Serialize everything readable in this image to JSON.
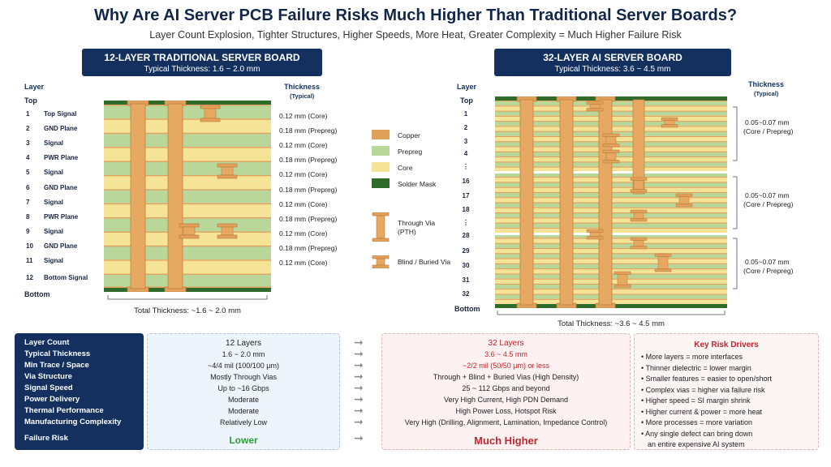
{
  "title": "Why Are AI Server PCB Failure Risks Much Higher Than Traditional Server Boards?",
  "subtitle": "Layer Count Explosion, Tighter Structures, Higher Speeds, More Heat, Greater Complexity = Much Higher Failure Risk",
  "left_board": {
    "heading": "12-LAYER TRADITIONAL SERVER BOARD",
    "thickness_line": "Typical Thickness: 1.6 ~ 2.0 mm",
    "layer_header": "Layer",
    "thickness_header": "Thickness",
    "thickness_sub": "(Typical)",
    "top": "Top",
    "bottom": "Bottom",
    "layers": [
      {
        "num": "1",
        "name": "Top Signal",
        "thk": "0.12 mm (Core)"
      },
      {
        "num": "2",
        "name": "GND Plane",
        "thk": "0.18 mm (Prepreg)"
      },
      {
        "num": "3",
        "name": "Signal",
        "thk": "0.12 mm (Core)"
      },
      {
        "num": "4",
        "name": "PWR Plane",
        "thk": "0.18 mm (Prepreg)"
      },
      {
        "num": "5",
        "name": "Signal",
        "thk": "0.12 mm (Core)"
      },
      {
        "num": "6",
        "name": "GND Plane",
        "thk": "0.18 mm (Prepreg)"
      },
      {
        "num": "7",
        "name": "Signal",
        "thk": "0.12 mm (Core)"
      },
      {
        "num": "8",
        "name": "PWR Plane",
        "thk": "0.18 mm (Prepreg)"
      },
      {
        "num": "9",
        "name": "Signal",
        "thk": "0.12 mm (Core)"
      },
      {
        "num": "10",
        "name": "GND Plane",
        "thk": "0.18 mm (Prepreg)"
      },
      {
        "num": "11",
        "name": "Signal",
        "thk": "0.12 mm (Core)"
      },
      {
        "num": "12",
        "name": "Bottom Signal",
        "thk": ""
      }
    ],
    "total": "Total Thickness: ~1.6 ~ 2.0 mm"
  },
  "right_board": {
    "heading": "32-LAYER AI SERVER BOARD",
    "thickness_line": "Typical Thickness: 3.6 ~ 4.5 mm",
    "layer_header": "Layer",
    "thickness_header": "Thickness",
    "thickness_sub": "(Typical)",
    "top": "Top",
    "bottom": "Bottom",
    "layer_nums": [
      "1",
      "2",
      "3",
      "4",
      "⋮",
      "16",
      "17",
      "18",
      "⋮",
      "28",
      "29",
      "30",
      "31",
      "32"
    ],
    "groups": [
      {
        "l1": "0.05~0.07 mm",
        "l2": "(Core / Prepreg)"
      },
      {
        "l1": "0.05~0.07 mm",
        "l2": "(Core / Prepreg)"
      },
      {
        "l1": "0.05~0.07 mm",
        "l2": "(Core / Prepreg)"
      }
    ],
    "total": "Total Thickness: ~3.6 ~ 4.5 mm"
  },
  "legend": {
    "copper": "Copper",
    "prepreg": "Prepreg",
    "core": "Core",
    "solder": "Solder Mask",
    "through_via": "Through Via",
    "through_via_sub": "(PTH)",
    "blind_via": "Blind / Buried Via"
  },
  "colors": {
    "copper": "#e2a15a",
    "prepreg": "#b9d79a",
    "core": "#f5e497",
    "solder": "#2f6b2a",
    "navy": "#13305e",
    "red": "#c0262d",
    "green": "#2e9d3a"
  },
  "comparison": {
    "rows": [
      {
        "label": "Layer Count",
        "trad": "12 Layers",
        "ai": "32 Layers"
      },
      {
        "label": "Typical Thickness",
        "trad": "1.6 ~ 2.0 mm",
        "ai": "3.6 ~ 4.5 mm"
      },
      {
        "label": "Min Trace / Space",
        "trad": "~4/4 mil (100/100 μm)",
        "ai": "~2/2 mil (50/50 μm) or less"
      },
      {
        "label": "Via Structure",
        "trad": "Mostly Through Vias",
        "ai": "Through + Blind + Buried Vias (High Density)"
      },
      {
        "label": "Signal Speed",
        "trad": "Up to ~16 Gbps",
        "ai": "25 ~ 112 Gbps and beyond"
      },
      {
        "label": "Power Delivery",
        "trad": "Moderate",
        "ai": "Very High Current, High PDN Demand"
      },
      {
        "label": "Thermal Performance",
        "trad": "Moderate",
        "ai": "High Power Loss, Hotspot Risk"
      },
      {
        "label": "Manufacturing Complexity",
        "trad": "Relatively Low",
        "ai": "Very High (Drilling, Alignment, Lamination, Impedance Control)"
      },
      {
        "label": "Failure Risk",
        "trad": "Lower",
        "ai": "Much Higher"
      }
    ],
    "risk_title": "Key Risk Drivers",
    "risks": [
      "• More layers = more interfaces",
      "• Thinner dielectric = lower margin",
      "• Smaller features = easier to open/short",
      "• Complex vias = higher via failure risk",
      "• Higher speed = SI margin shrink",
      "• Higher current & power = more heat",
      "• More processes = more variation",
      "• Any single defect can bring down",
      "  an entire expensive AI system"
    ]
  }
}
